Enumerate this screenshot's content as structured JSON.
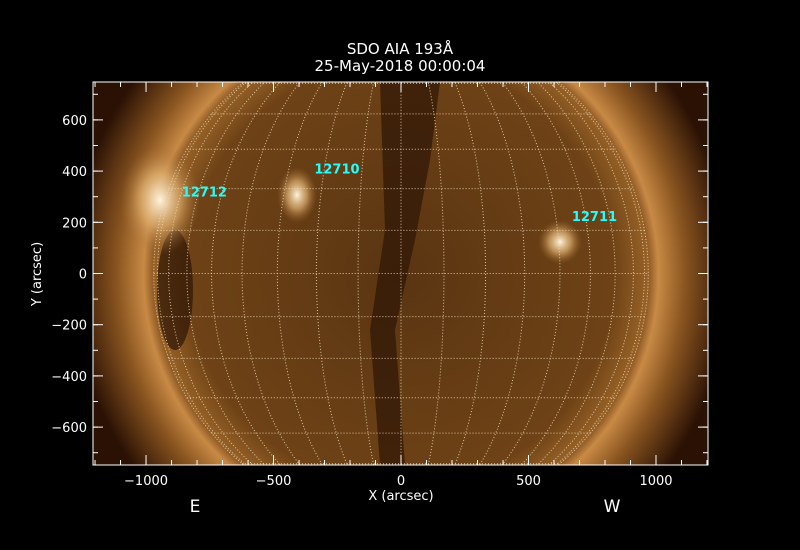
{
  "title": {
    "line1": "SDO AIA 193Å",
    "line2": "25-May-2018 00:00:04"
  },
  "axes": {
    "xlabel": "X (arcsec)",
    "ylabel": "Y (arcsec)",
    "xlim": [
      -1208,
      1204
    ],
    "ylim": [
      -748,
      748
    ],
    "xticks": [
      -1000,
      -500,
      0,
      500,
      1000
    ],
    "yticks": [
      -600,
      -400,
      -200,
      0,
      200,
      400,
      600
    ]
  },
  "limb_labels": {
    "east": "E",
    "west": "W"
  },
  "active_regions": [
    {
      "label": "12712",
      "x": -860,
      "y": 300
    },
    {
      "label": "12710",
      "x": -340,
      "y": 390
    },
    {
      "label": "12711",
      "x": 670,
      "y": 205
    }
  ],
  "colors": {
    "label": "#22ffff",
    "grid": "#f0dcb8",
    "disk": "#6a3c12",
    "corona": "#c88a45"
  }
}
